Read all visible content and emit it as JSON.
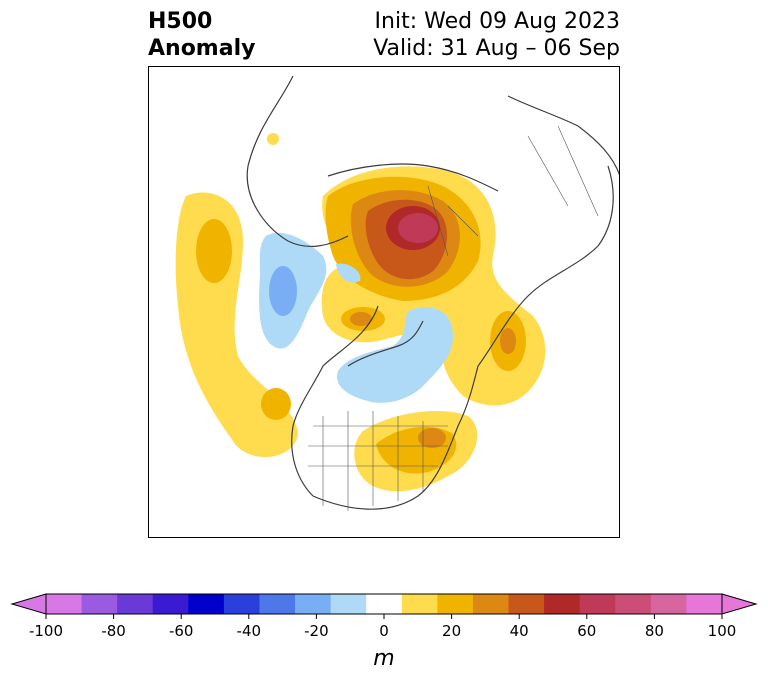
{
  "title": {
    "left_line1": "H500",
    "left_line2": "Anomaly",
    "right_line1": "Init: Wed 09 Aug 2023",
    "right_line2": "Valid: 31 Aug – 06 Sep"
  },
  "colorbar": {
    "unit": "m",
    "ticks": [
      "-100",
      "-80",
      "-60",
      "-40",
      "-20",
      "0",
      "20",
      "40",
      "60",
      "80",
      "100"
    ],
    "colors": [
      "#d878e6",
      "#9a5ae2",
      "#6a3ad8",
      "#3a1ad2",
      "#0000cc",
      "#2a40dc",
      "#4e78ea",
      "#7aaef4",
      "#aedaf8",
      "#ffffff",
      "#ffdc4e",
      "#f0b400",
      "#dc8812",
      "#c8581a",
      "#b02828",
      "#c03a58",
      "#cc4e78",
      "#d864a0",
      "#e676d8"
    ],
    "extend_low": "#d878e6",
    "extend_high": "#e676d8"
  }
}
